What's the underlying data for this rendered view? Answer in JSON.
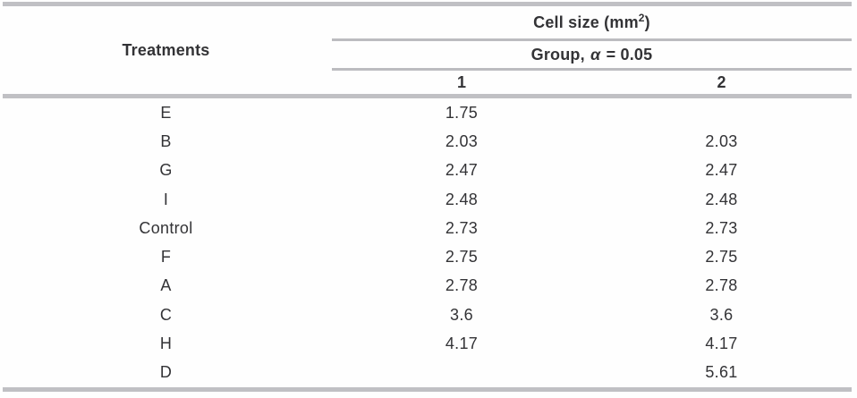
{
  "colors": {
    "rule_gray": "#c0c0c4",
    "text": "#333336",
    "background": "#fefefe"
  },
  "table": {
    "treatments_header": "Treatments",
    "cell_size_header": {
      "prefix": "Cell size (mm",
      "superscript": "2",
      "suffix": ")"
    },
    "group_header": {
      "prefix": "Group, ",
      "alpha": "α",
      "suffix": " = 0.05"
    },
    "group_columns": [
      "1",
      "2"
    ],
    "rows": [
      {
        "treatment": "E",
        "group1": "1.75",
        "group2": ""
      },
      {
        "treatment": "B",
        "group1": "2.03",
        "group2": "2.03"
      },
      {
        "treatment": "G",
        "group1": "2.47",
        "group2": "2.47"
      },
      {
        "treatment": "I",
        "group1": "2.48",
        "group2": "2.48"
      },
      {
        "treatment": "Control",
        "group1": "2.73",
        "group2": "2.73"
      },
      {
        "treatment": "F",
        "group1": "2.75",
        "group2": "2.75"
      },
      {
        "treatment": "A",
        "group1": "2.78",
        "group2": "2.78"
      },
      {
        "treatment": "C",
        "group1": "3.6",
        "group2": "3.6"
      },
      {
        "treatment": "H",
        "group1": "4.17",
        "group2": "4.17"
      },
      {
        "treatment": "D",
        "group1": "",
        "group2": "5.61"
      }
    ]
  }
}
